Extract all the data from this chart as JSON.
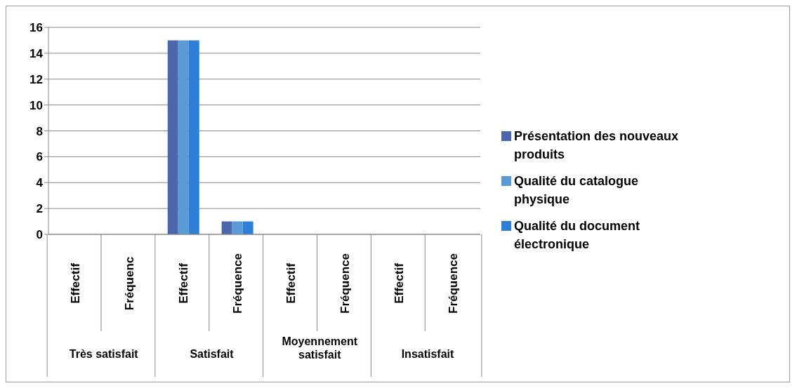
{
  "chart_data": {
    "type": "bar",
    "categories": [
      "Effectif",
      "Fréquenc",
      "Effectif",
      "Fréquence",
      "Effectif",
      "Fréquence",
      "Effectif",
      "Fréquence"
    ],
    "series": [
      {
        "name": "Présentation des nouveaux produits",
        "color": "#4a66ac",
        "values": [
          0,
          0,
          15,
          1,
          0,
          0,
          0,
          0
        ]
      },
      {
        "name": "Qualité du catalogue physique",
        "color": "#5b9bd5",
        "values": [
          0,
          0,
          15,
          1,
          0,
          0,
          0,
          0
        ]
      },
      {
        "name": "Qualité du document électronique",
        "color": "#2e7fd6",
        "values": [
          0,
          0,
          15,
          1,
          0,
          0,
          0,
          0
        ]
      }
    ],
    "annotations": [
      "Très satisfait",
      "Satisfait",
      "Moyennement satisfait",
      "Insatisfait"
    ],
    "ylim": [
      0,
      16
    ],
    "yticks": [
      0,
      2,
      4,
      6,
      8,
      10,
      12,
      14,
      16
    ],
    "grid": "y",
    "legend": "right"
  }
}
